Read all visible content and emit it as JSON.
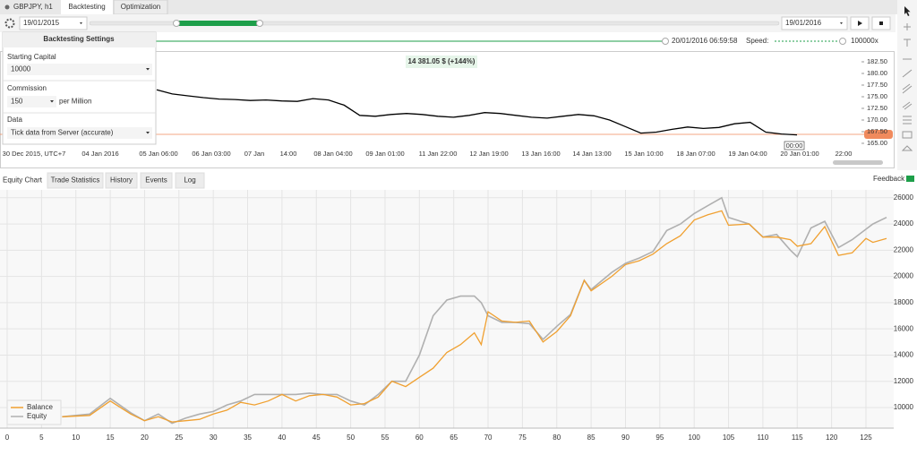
{
  "tabs": [
    "GBPJPY, h1",
    "Backtesting",
    "Optimization"
  ],
  "toolbar": {
    "start_date": "19/01/2015",
    "end_date": "19/01/2016"
  },
  "progress": {
    "time": "20/01/2016 06:59:58",
    "speed_label": "Speed:",
    "speed_value": "100000x"
  },
  "settings": {
    "title": "Backtesting Settings",
    "starting_capital_label": "Starting Capital",
    "starting_capital": "10000",
    "commission_label": "Commission",
    "commission": "150",
    "commission_unit": "per Million",
    "data_label": "Data",
    "data": "Tick data from Server (accurate)"
  },
  "price_chart": {
    "type": "line",
    "result": "14 381.05 $ (+144%)",
    "cursor_time": "00:00",
    "ylim": [
      164.04,
      184.23
    ],
    "yticks": [
      {
        "value": 182.5,
        "label": "182.50"
      },
      {
        "value": 180,
        "label": "180.00"
      },
      {
        "value": 177.5,
        "label": "177.50"
      },
      {
        "value": 175,
        "label": "175.00"
      },
      {
        "value": 172.5,
        "label": "172.50"
      },
      {
        "value": 170,
        "label": "170.00"
      },
      {
        "value": 167.5,
        "label": "167.50"
      },
      {
        "value": 165,
        "label": "165.00"
      }
    ],
    "time_labels": [
      "30 Dec 2015, UTC+7",
      "04 Jan 2016",
      "05 Jan 06:00",
      "06 Jan 03:00",
      "07 Jan",
      "14:00",
      "08 Jan 04:00",
      "09 Jan 01:00",
      "11 Jan 22:00",
      "12 Jan 19:00",
      "13 Jan 16:00",
      "14 Jan 13:00",
      "15 Jan 10:00",
      "18 Jan 07:00",
      "19 Jan 04:00",
      "20 Jan 01:00",
      "22:00"
    ],
    "values": [
      176.5,
      175.6,
      175.2,
      174.8,
      174.5,
      174.4,
      174.2,
      174.3,
      174.1,
      174.0,
      174.6,
      174.3,
      173.2,
      171.0,
      170.8,
      171.2,
      171.4,
      171.2,
      170.8,
      170.6,
      171.0,
      171.6,
      171.4,
      171.0,
      170.6,
      170.4,
      170.8,
      171.2,
      170.9,
      170.0,
      168.6,
      167.2,
      167.4,
      168.0,
      168.5,
      168.2,
      168.4,
      169.2,
      169.5,
      167.4,
      167.0,
      166.8
    ],
    "color": "#000000"
  },
  "bottom_tabs": [
    "Equity Chart",
    "Trade Statistics",
    "History",
    "Events",
    "Log"
  ],
  "feedback": "Feedback",
  "chart_data": {
    "type": "line",
    "x": [
      8,
      12,
      15,
      18,
      20,
      22,
      24,
      26,
      28,
      30,
      32,
      34,
      36,
      38,
      40,
      42,
      44,
      46,
      48,
      50,
      52,
      54,
      56,
      58,
      60,
      62,
      64,
      66,
      68,
      69,
      70,
      72,
      74,
      76,
      78,
      80,
      82,
      84,
      85,
      88,
      90,
      92,
      94,
      96,
      98,
      100,
      102,
      104,
      105,
      108,
      110,
      112,
      114,
      115,
      117,
      119,
      121,
      123,
      125,
      126,
      128
    ],
    "series": [
      {
        "name": "Balance",
        "color": "#f0a030",
        "values": [
          9300,
          9400,
          10500,
          9500,
          9000,
          9300,
          8900,
          9000,
          9100,
          9500,
          9800,
          10400,
          10200,
          10500,
          11000,
          10500,
          10900,
          11000,
          10800,
          10200,
          10300,
          10800,
          12000,
          11600,
          12300,
          13000,
          14200,
          14800,
          15700,
          14800,
          17300,
          16600,
          16500,
          16600,
          15000,
          15800,
          17000,
          19700,
          18900,
          20000,
          20900,
          21200,
          21700,
          22500,
          23100,
          24300,
          24700,
          25000,
          23900,
          24000,
          23000,
          23000,
          22800,
          22300,
          22500,
          23800,
          21600,
          21800,
          22900,
          22600,
          22900
        ]
      },
      {
        "name": "Equity",
        "color": "#b0b0b0",
        "values": [
          9300,
          9500,
          10700,
          9600,
          9000,
          9500,
          8800,
          9200,
          9500,
          9700,
          10200,
          10500,
          11000,
          11000,
          11000,
          11000,
          11100,
          11000,
          11000,
          10500,
          10200,
          11000,
          12000,
          12000,
          14000,
          17000,
          18200,
          18500,
          18500,
          18000,
          17000,
          16500,
          16500,
          16400,
          15200,
          16200,
          17100,
          19700,
          19000,
          20300,
          21000,
          21400,
          21900,
          23500,
          24000,
          24800,
          25400,
          26000,
          24500,
          24000,
          23000,
          23200,
          22000,
          21500,
          23700,
          24200,
          22200,
          22800,
          23600,
          24000,
          24500
        ]
      }
    ],
    "xlim": [
      0,
      128
    ],
    "ylim": [
      8430,
      26600
    ],
    "xticks": [
      0,
      5,
      10,
      15,
      20,
      25,
      30,
      35,
      40,
      45,
      50,
      55,
      60,
      65,
      70,
      75,
      80,
      85,
      90,
      95,
      100,
      105,
      110,
      115,
      120,
      125
    ],
    "yticks": [
      10000,
      12000,
      14000,
      16000,
      18000,
      20000,
      22000,
      24000,
      26000
    ],
    "grid": true,
    "legend": "bottom-left"
  }
}
